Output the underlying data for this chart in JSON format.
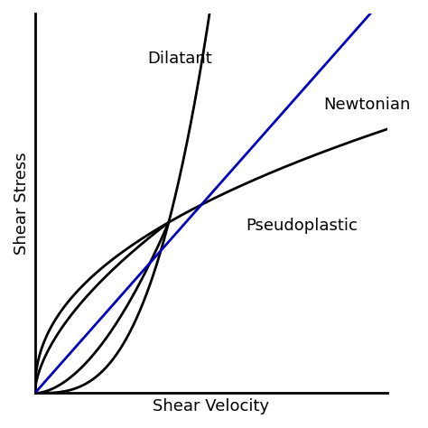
{
  "xlabel": "Shear Velocity",
  "ylabel": "Shear Stress",
  "background_color": "#ffffff",
  "line_color_newtonian": "#0000bb",
  "line_color_black": "#000000",
  "line_width": 2.0,
  "label_dilatant": "Dilatant",
  "label_newtonian": "Newtonian",
  "label_pseudoplastic": "Pseudoplastic",
  "xlabel_fontsize": 13,
  "ylabel_fontsize": 13,
  "label_fontsize": 13,
  "xlim": [
    0,
    1.0
  ],
  "ylim": [
    0,
    1.0
  ]
}
